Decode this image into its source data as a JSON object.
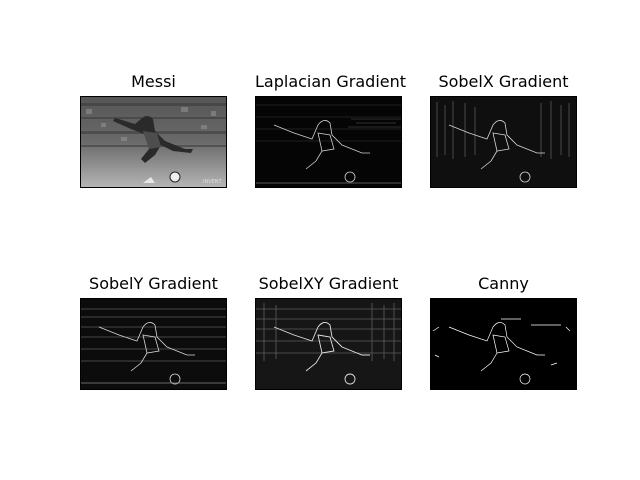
{
  "figure": {
    "background": "#ffffff",
    "panels": [
      {
        "id": "messi",
        "title": "Messi",
        "kind": "grayscale-photo"
      },
      {
        "id": "laplacian",
        "title": "Laplacian Gradient",
        "kind": "edge-map"
      },
      {
        "id": "sobelx",
        "title": "SobelX Gradient",
        "kind": "edge-map"
      },
      {
        "id": "sobely",
        "title": "SobelY Gradient",
        "kind": "edge-map"
      },
      {
        "id": "sobelxy",
        "title": "SobelXY Gradient",
        "kind": "edge-map"
      },
      {
        "id": "canny",
        "title": "Canny",
        "kind": "binary-edge-map"
      }
    ]
  }
}
